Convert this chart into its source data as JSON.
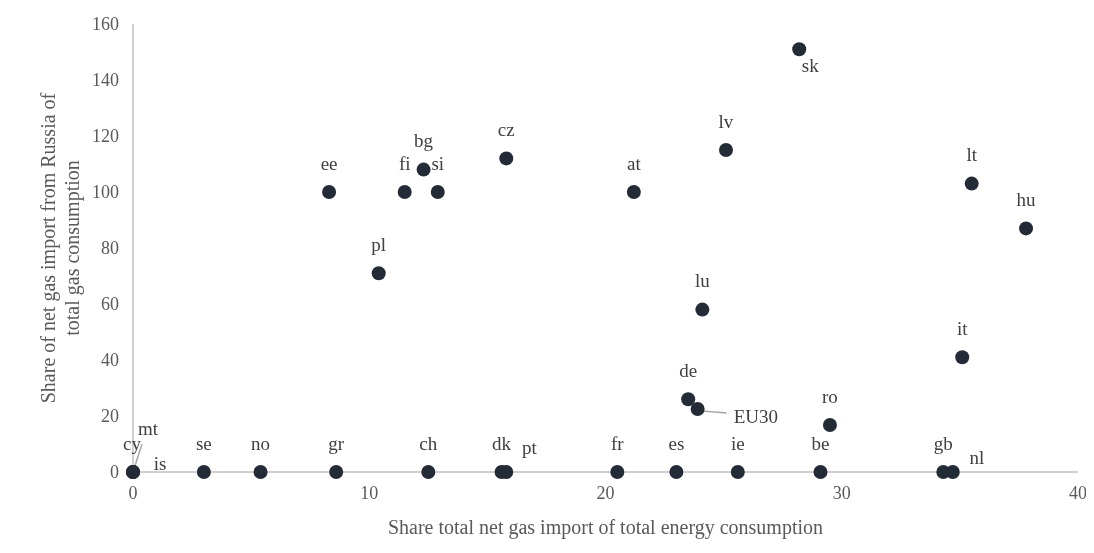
{
  "chart_data": {
    "type": "scatter",
    "xlabel": "Share total net gas import of total energy consumption",
    "ylabel": "Share of net gas import from Russia of\ntotal gas consumption",
    "xlim": [
      0,
      40
    ],
    "xticks": [
      0,
      10,
      20,
      30,
      40
    ],
    "ylim": [
      0,
      160
    ],
    "yticks": [
      0,
      20,
      40,
      60,
      80,
      100,
      120,
      140,
      160
    ],
    "grid": false,
    "marker": "circle",
    "series": [
      {
        "color": "#232b37",
        "x": [
          0,
          0,
          0,
          3.0,
          5.4,
          8.6,
          12.5,
          15.6,
          15.8,
          20.5,
          23.0,
          25.6,
          29.1,
          34.3,
          34.7,
          23.5,
          23.9,
          29.5,
          35.1,
          8.3,
          11.5,
          12.3,
          12.9,
          15.8,
          21.2,
          10.4,
          25.1,
          24.1,
          28.2,
          35.5,
          37.8
        ],
        "values": [
          0,
          0,
          0,
          0,
          0,
          0,
          0,
          0,
          0,
          0,
          0,
          0,
          0,
          0,
          0,
          26,
          22.5,
          16.8,
          41,
          100,
          100,
          108,
          100,
          112,
          100,
          71,
          115,
          58,
          151,
          103,
          87
        ]
      }
    ],
    "annotations": [
      {
        "text": "cy",
        "x": 0,
        "y": 0
      },
      {
        "text": "mt",
        "x": 0,
        "y": 0
      },
      {
        "text": "is",
        "x": 0,
        "y": 0
      },
      {
        "text": "se",
        "x": 3.0,
        "y": 0
      },
      {
        "text": "no",
        "x": 5.4,
        "y": 0
      },
      {
        "text": "gr",
        "x": 8.6,
        "y": 0
      },
      {
        "text": "ch",
        "x": 12.5,
        "y": 0
      },
      {
        "text": "dk",
        "x": 15.6,
        "y": 0
      },
      {
        "text": "pt",
        "x": 15.8,
        "y": 0
      },
      {
        "text": "fr",
        "x": 20.5,
        "y": 0
      },
      {
        "text": "es",
        "x": 23.0,
        "y": 0
      },
      {
        "text": "ie",
        "x": 25.6,
        "y": 0
      },
      {
        "text": "be",
        "x": 29.1,
        "y": 0
      },
      {
        "text": "gb",
        "x": 34.3,
        "y": 0
      },
      {
        "text": "nl",
        "x": 34.7,
        "y": 0
      },
      {
        "text": "de",
        "x": 23.5,
        "y": 26
      },
      {
        "text": "EU30",
        "x": 23.9,
        "y": 22.5
      },
      {
        "text": "ro",
        "x": 29.5,
        "y": 16.8
      },
      {
        "text": "it",
        "x": 35.1,
        "y": 41
      },
      {
        "text": "ee",
        "x": 8.3,
        "y": 100
      },
      {
        "text": "fi",
        "x": 11.5,
        "y": 100
      },
      {
        "text": "bg",
        "x": 12.3,
        "y": 108
      },
      {
        "text": "si",
        "x": 12.9,
        "y": 100
      },
      {
        "text": "cz",
        "x": 15.8,
        "y": 112
      },
      {
        "text": "at",
        "x": 21.2,
        "y": 100
      },
      {
        "text": "pl",
        "x": 10.4,
        "y": 71
      },
      {
        "text": "lv",
        "x": 25.1,
        "y": 115
      },
      {
        "text": "lu",
        "x": 24.1,
        "y": 58
      },
      {
        "text": "sk",
        "x": 28.2,
        "y": 151
      },
      {
        "text": "lt",
        "x": 35.5,
        "y": 103
      },
      {
        "text": "hu",
        "x": 37.8,
        "y": 87
      }
    ]
  }
}
